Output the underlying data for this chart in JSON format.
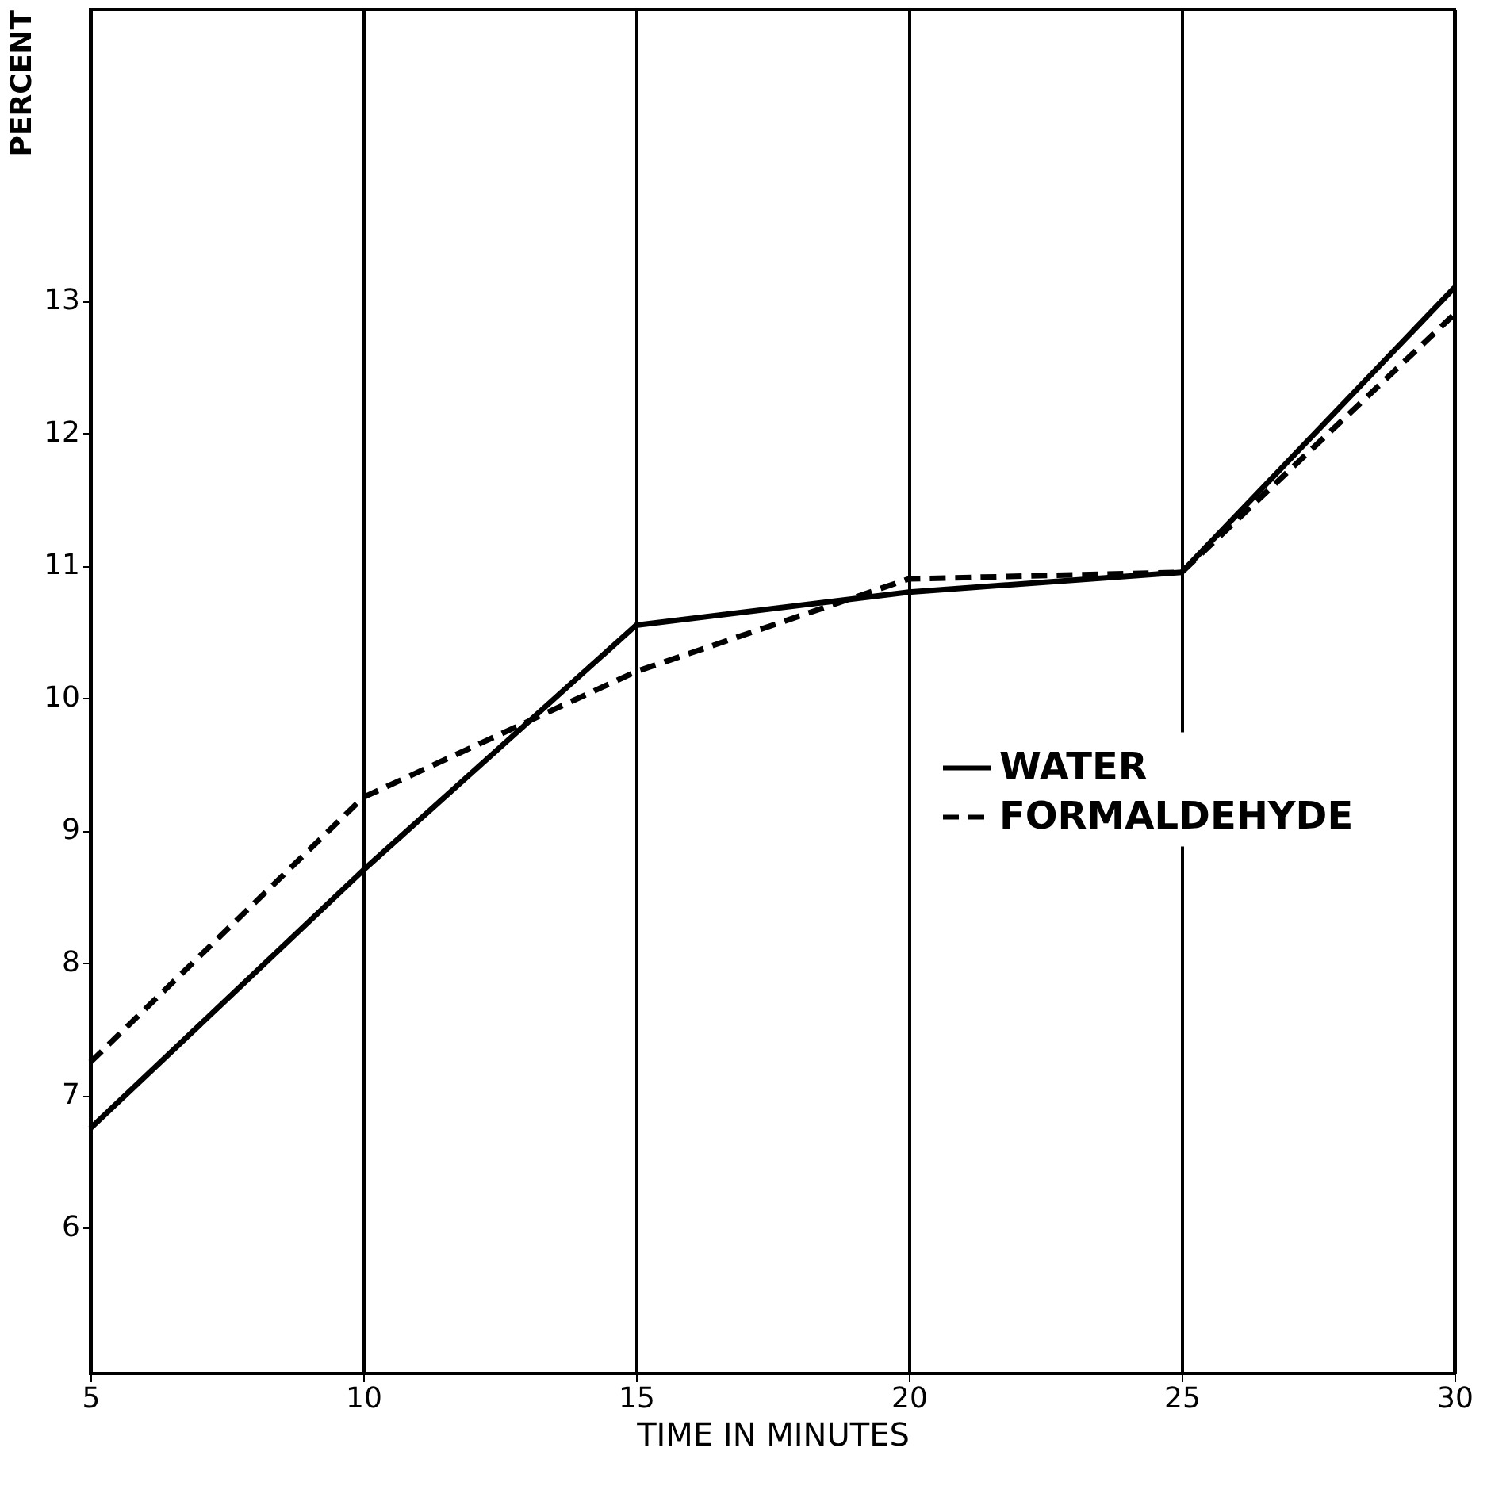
{
  "chart_data": {
    "type": "line",
    "xlabel": "TIME IN MINUTES",
    "ylabel": "PERCENT",
    "x": [
      5,
      10,
      15,
      20,
      25,
      30
    ],
    "series": [
      {
        "name": "WATER",
        "color": "#000000",
        "line_style": "solid",
        "values": [
          6.75,
          8.7,
          10.55,
          10.8,
          10.95,
          13.1
        ]
      },
      {
        "name": "FORMALDEHYDE",
        "color": "#000000",
        "line_style": "dashed",
        "values": [
          7.25,
          9.25,
          10.2,
          10.9,
          10.95,
          12.9
        ]
      }
    ],
    "xlim": [
      5,
      30
    ],
    "xticks": [
      5,
      10,
      15,
      20,
      25,
      30
    ],
    "ylim": [
      4.9,
      15.2
    ],
    "yticks": [
      6,
      7,
      8,
      9,
      10,
      11,
      12,
      13
    ],
    "grid": "x",
    "legend": "right",
    "marker": "none"
  }
}
